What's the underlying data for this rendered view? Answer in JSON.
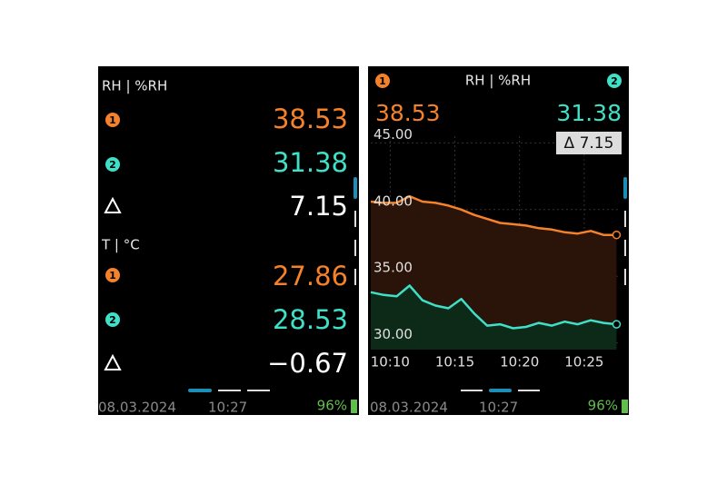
{
  "left_screen": {
    "rh_title": "RH | %RH",
    "rh_badge_1": "1",
    "rh_value_1": "38.53",
    "rh_badge_2": "2",
    "rh_value_2": "31.38",
    "rh_delta": "7.15",
    "t_title": "T | °C",
    "t_badge_1": "1",
    "t_value_1": "27.86",
    "t_badge_2": "2",
    "t_value_2": "28.53",
    "t_delta": "−0.67",
    "date": "08.03.2024",
    "time": "10:27",
    "battery": "96%"
  },
  "right_screen": {
    "title": "RH | %RH",
    "badge_1": "1",
    "badge_2": "2",
    "value_1": "38.53",
    "value_2": "31.38",
    "delta_label": "Δ 7.15",
    "date": "08.03.2024",
    "time": "10:27",
    "battery": "96%"
  },
  "chart_data": {
    "type": "line",
    "x": [
      8.5,
      9.5,
      10.5,
      11.5,
      12.5,
      13.5,
      14.5,
      15.5,
      16.5,
      17.5,
      18.5,
      19.5,
      20.5,
      21.5,
      22.5,
      23.5,
      24.5,
      25.5,
      26.5,
      27.5
    ],
    "xlim": [
      8.5,
      27.75
    ],
    "xticks": [
      {
        "value": 10,
        "label": "10:10"
      },
      {
        "value": 15,
        "label": "10:15"
      },
      {
        "value": 20,
        "label": "10:20"
      },
      {
        "value": 25,
        "label": "10:25"
      }
    ],
    "ylim": [
      29.5,
      45.5
    ],
    "yticks": [
      {
        "value": 30,
        "label": "30.00"
      },
      {
        "value": 35,
        "label": "35.00"
      },
      {
        "value": 40,
        "label": "40.00"
      },
      {
        "value": 45,
        "label": "45.00"
      }
    ],
    "grid": true,
    "series": [
      {
        "color": "#f5822a",
        "fill": "#2a1308",
        "values": [
          40.6,
          40.5,
          40.5,
          41.0,
          40.6,
          40.5,
          40.3,
          40.0,
          39.6,
          39.3,
          39.0,
          38.9,
          38.8,
          38.6,
          38.5,
          38.3,
          38.2,
          38.4,
          38.1,
          38.1
        ]
      },
      {
        "color": "#3ee0c8",
        "fill": "#0d2a18",
        "values": [
          33.8,
          33.6,
          33.5,
          34.3,
          33.2,
          32.8,
          32.6,
          33.3,
          32.2,
          31.3,
          31.4,
          31.1,
          31.2,
          31.5,
          31.3,
          31.6,
          31.4,
          31.7,
          31.5,
          31.4
        ]
      }
    ]
  }
}
